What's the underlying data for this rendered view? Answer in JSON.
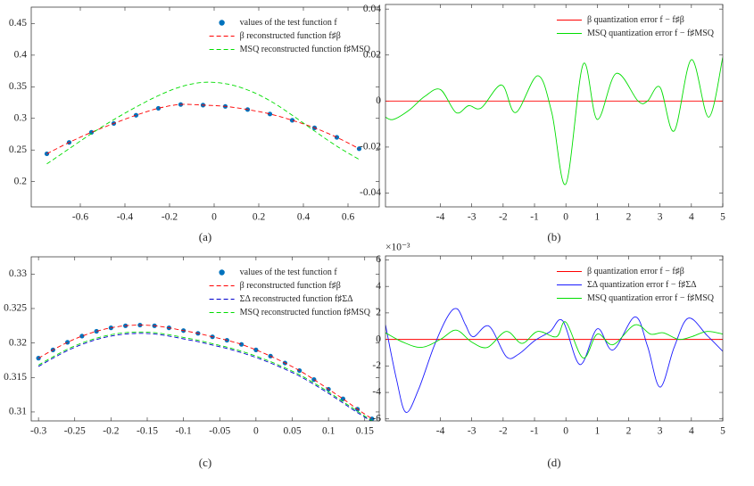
{
  "chart_data": [
    {
      "type": "line",
      "caption": "(a)",
      "x": [
        -0.75,
        -0.65,
        -0.55,
        -0.45,
        -0.35,
        -0.25,
        -0.15,
        -0.05,
        0.05,
        0.15,
        0.25,
        0.35,
        0.45,
        0.55,
        0.65
      ],
      "series": [
        {
          "name": "values of the test function f",
          "color": "#0072bd",
          "style": "dots",
          "values": [
            0.244,
            0.262,
            0.278,
            0.292,
            0.305,
            0.316,
            0.322,
            0.321,
            0.319,
            0.314,
            0.307,
            0.297,
            0.285,
            0.27,
            0.252
          ]
        },
        {
          "name": "β reconstructed function f♯β",
          "color": "#ff0000",
          "style": "dashed",
          "values": [
            0.244,
            0.262,
            0.278,
            0.292,
            0.305,
            0.316,
            0.322,
            0.321,
            0.319,
            0.314,
            0.307,
            0.297,
            0.285,
            0.27,
            0.252
          ]
        },
        {
          "name": "MSQ reconstructed function f♯MSQ",
          "color": "#00dd00",
          "style": "dashed",
          "values": [
            0.228,
            0.252,
            0.276,
            0.298,
            0.318,
            0.336,
            0.35,
            0.357,
            0.355,
            0.345,
            0.328,
            0.305,
            0.28,
            0.256,
            0.235
          ]
        }
      ],
      "xlim": [
        -0.82,
        0.74
      ],
      "xticks": [
        -0.6,
        -0.4,
        -0.2,
        0,
        0.2,
        0.4,
        0.6
      ],
      "ylim": [
        0.16,
        0.476
      ],
      "yticks": [
        0.2,
        0.25,
        0.3,
        0.35,
        0.4,
        0.45
      ],
      "legend": "upper right",
      "grid": false
    },
    {
      "type": "line",
      "caption": "(b)",
      "series": [
        {
          "name": "β quantization error f − f♯β",
          "color": "#ff0000",
          "style": "solid",
          "x": [
            -5.75,
            5
          ],
          "values": [
            0,
            0
          ]
        },
        {
          "name": "MSQ quantization error f − f♯MSQ",
          "color": "#00dd00",
          "style": "solid",
          "x": [
            -5.75,
            -5.5,
            -5.0,
            -4.5,
            -4.0,
            -3.5,
            -3.1,
            -2.7,
            -2.05,
            -1.6,
            -0.9,
            -0.45,
            0,
            0.55,
            1.0,
            1.6,
            2.3,
            2.6,
            3.0,
            3.45,
            4.0,
            4.55,
            5.0
          ],
          "values": [
            -0.007,
            -0.008,
            -0.004,
            0.002,
            0.005,
            -0.005,
            -0.002,
            -0.003,
            0.007,
            -0.005,
            0.011,
            -0.005,
            -0.036,
            0.016,
            -0.008,
            0.012,
            0.0,
            0.0,
            0.006,
            -0.013,
            0.018,
            -0.007,
            0.019
          ]
        }
      ],
      "xlim": [
        -5.75,
        5
      ],
      "xticks": [
        -4,
        -3,
        -2,
        -1,
        0,
        1,
        2,
        3,
        4,
        5
      ],
      "ylim": [
        -0.046,
        0.042
      ],
      "yticks": [
        -0.04,
        -0.02,
        0,
        0.02,
        0.04
      ],
      "legend": "upper right",
      "grid": false
    },
    {
      "type": "line",
      "caption": "(c)",
      "x": [
        -0.3,
        -0.28,
        -0.26,
        -0.24,
        -0.22,
        -0.2,
        -0.18,
        -0.16,
        -0.14,
        -0.12,
        -0.1,
        -0.08,
        -0.06,
        -0.04,
        -0.02,
        0,
        0.02,
        0.04,
        0.06,
        0.08,
        0.1,
        0.12,
        0.14,
        0.16
      ],
      "series": [
        {
          "name": "values of the test function f",
          "color": "#0072bd",
          "style": "dots",
          "values": [
            0.3178,
            0.319,
            0.3201,
            0.321,
            0.3217,
            0.3222,
            0.3225,
            0.3226,
            0.3225,
            0.3222,
            0.3218,
            0.3214,
            0.3209,
            0.3204,
            0.3198,
            0.319,
            0.3181,
            0.3171,
            0.316,
            0.3147,
            0.3133,
            0.3119,
            0.3104,
            0.309
          ]
        },
        {
          "name": "β reconstructed function f♯β",
          "color": "#ff0000",
          "style": "dashed",
          "values": [
            0.3178,
            0.319,
            0.3201,
            0.321,
            0.3217,
            0.3222,
            0.3225,
            0.3226,
            0.3225,
            0.3222,
            0.3218,
            0.3214,
            0.3209,
            0.3204,
            0.3198,
            0.319,
            0.3181,
            0.3171,
            0.316,
            0.3147,
            0.3133,
            0.3119,
            0.3104,
            0.309
          ]
        },
        {
          "name": "ΣΔ reconstructed function f♯ΣΔ",
          "color": "#0000cc",
          "style": "dashed",
          "values": [
            0.3166,
            0.3178,
            0.3189,
            0.3198,
            0.3205,
            0.321,
            0.3213,
            0.3214,
            0.3213,
            0.321,
            0.3206,
            0.3202,
            0.3197,
            0.3192,
            0.3186,
            0.3179,
            0.3171,
            0.3162,
            0.3152,
            0.314,
            0.3127,
            0.3113,
            0.3099,
            0.3086
          ]
        },
        {
          "name": "MSQ reconstructed function f♯MSQ",
          "color": "#00dd00",
          "style": "dashed",
          "values": [
            0.3168,
            0.318,
            0.3191,
            0.32,
            0.3207,
            0.3212,
            0.3215,
            0.3216,
            0.3215,
            0.3212,
            0.3208,
            0.3204,
            0.3199,
            0.3194,
            0.3188,
            0.3181,
            0.3173,
            0.3164,
            0.3154,
            0.3142,
            0.3129,
            0.3115,
            0.3101,
            0.3087
          ]
        }
      ],
      "xlim": [
        -0.31,
        0.17
      ],
      "xticks": [
        -0.3,
        -0.25,
        -0.2,
        -0.15,
        -0.1,
        -0.05,
        0,
        0.05,
        0.1,
        0.15
      ],
      "ylim": [
        0.3087,
        0.3325
      ],
      "yticks": [
        0.31,
        0.315,
        0.32,
        0.325,
        0.33
      ],
      "legend": "upper right",
      "grid": false
    },
    {
      "type": "line",
      "caption": "(d)",
      "y_multiplier": "×10⁻³",
      "series": [
        {
          "name": "β quantization error f − f♯β",
          "color": "#ff0000",
          "style": "solid",
          "x": [
            -5.75,
            5
          ],
          "values": [
            0,
            0
          ]
        },
        {
          "name": "ΣΔ quantization error f − f♯ΣΔ",
          "color": "#1a1aff",
          "style": "solid",
          "x": [
            -5.75,
            -5.4,
            -5.1,
            -4.7,
            -4.2,
            -3.75,
            -3.46,
            -3.2,
            -2.95,
            -2.45,
            -1.9,
            -1.5,
            -1.0,
            -0.5,
            -0.1,
            0.45,
            1.0,
            1.5,
            2.2,
            2.6,
            3.0,
            3.45,
            3.9,
            4.5,
            5.0
          ],
          "values": [
            1.1,
            -3.0,
            -5.5,
            -3.8,
            -0.5,
            1.8,
            2.3,
            1.1,
            0.2,
            1.0,
            -1.3,
            -1.1,
            -0.1,
            0.6,
            1.4,
            -1.9,
            0.8,
            -0.8,
            1.7,
            -0.5,
            -3.6,
            -0.6,
            1.6,
            0.3,
            -0.9
          ]
        },
        {
          "name": "MSQ quantization error f − f♯MSQ",
          "color": "#00dd00",
          "style": "solid",
          "x": [
            -5.75,
            -5.2,
            -4.6,
            -4.0,
            -3.5,
            -3.0,
            -2.5,
            -1.9,
            -1.4,
            -0.9,
            -0.3,
            0,
            0.55,
            1.0,
            1.5,
            2.2,
            2.7,
            3.1,
            3.6,
            4.0,
            4.5,
            5.0
          ],
          "values": [
            0.5,
            -0.2,
            -0.6,
            0.0,
            0.7,
            -0.2,
            -0.6,
            0.6,
            -0.3,
            0.6,
            0.2,
            1.3,
            -1.4,
            0.4,
            -0.4,
            1.1,
            0.4,
            0.5,
            0.0,
            0.2,
            0.6,
            0.4
          ]
        }
      ],
      "xlim": [
        -5.75,
        5
      ],
      "xticks": [
        -4,
        -3,
        -2,
        -1,
        0,
        1,
        2,
        3,
        4,
        5
      ],
      "ylim": [
        -6.15,
        6.3
      ],
      "yticks": [
        -6,
        -4,
        -2,
        0,
        2,
        4,
        6
      ],
      "legend": "upper right",
      "grid": false
    }
  ]
}
